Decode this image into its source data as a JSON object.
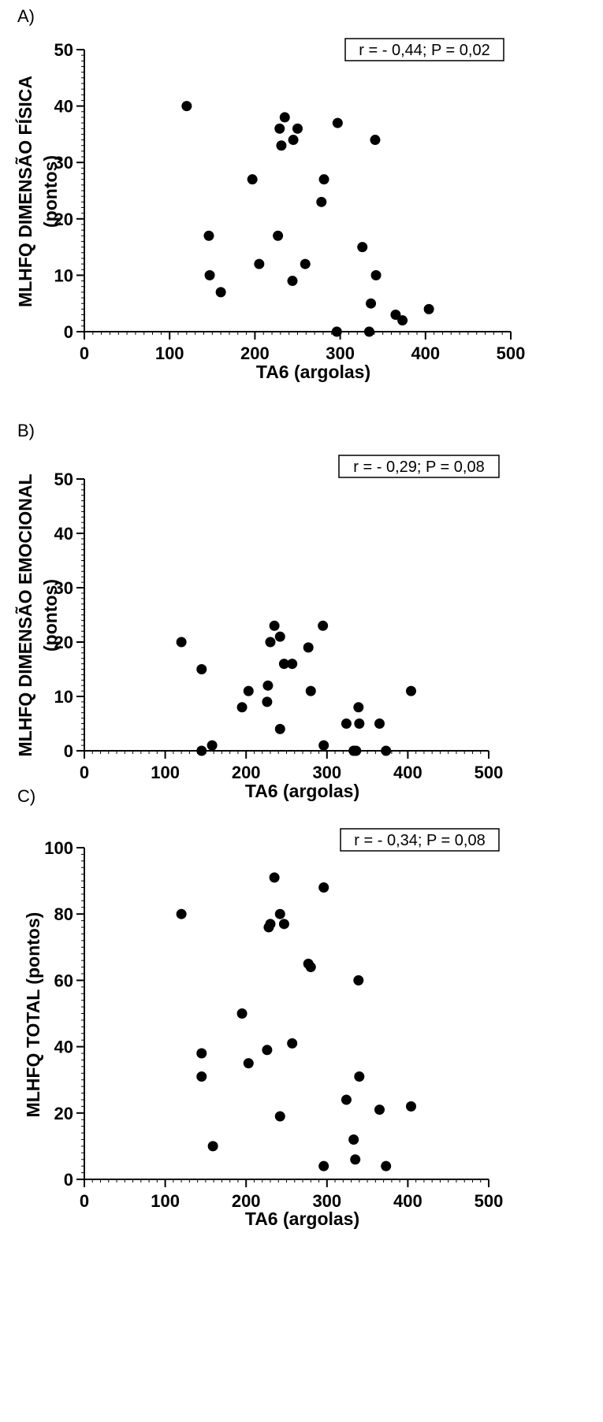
{
  "chart_data": [
    {
      "type": "scatter",
      "panel_label": "A)",
      "xlabel": "TA6 (argolas)",
      "ylabel": "MLHFQ DIMENSÃO FÍSICA",
      "ylabel2": "(pontos)",
      "annotation": "r = - 0,44; P = 0,02",
      "xlim": [
        0,
        500
      ],
      "ylim": [
        0,
        50
      ],
      "xticks": [
        "0",
        "100",
        "200",
        "300",
        "400",
        "500"
      ],
      "yticks": [
        "0",
        "10",
        "20",
        "30",
        "40",
        "50"
      ],
      "x": [
        120,
        146,
        147,
        160,
        197,
        205,
        227,
        229,
        231,
        235,
        244,
        245,
        250,
        259,
        278,
        281,
        296,
        297,
        326,
        334,
        336,
        341,
        342,
        365,
        373,
        404
      ],
      "y": [
        40,
        17,
        10,
        7,
        27,
        12,
        17,
        36,
        33,
        38,
        9,
        34,
        36,
        12,
        23,
        27,
        0,
        37,
        15,
        0,
        5,
        34,
        10,
        3,
        2,
        4
      ]
    },
    {
      "type": "scatter",
      "panel_label": "B)",
      "xlabel": "TA6 (argolas)",
      "ylabel": "MLHFQ DIMENSÃO EMOCIONAL",
      "ylabel2": "(pontos)",
      "annotation": "r = - 0,29; P = 0,08",
      "xlim": [
        0,
        500
      ],
      "ylim": [
        0,
        50
      ],
      "xticks": [
        "0",
        "100",
        "200",
        "300",
        "400",
        "500"
      ],
      "yticks": [
        "0",
        "10",
        "20",
        "30",
        "40",
        "50"
      ],
      "x": [
        120,
        145,
        145,
        158,
        195,
        203,
        226,
        227,
        230,
        235,
        242,
        242,
        247,
        257,
        277,
        280,
        295,
        296,
        324,
        333,
        336,
        339,
        340,
        365,
        373,
        404
      ],
      "y": [
        20,
        15,
        0,
        1,
        8,
        11,
        9,
        12,
        20,
        23,
        21,
        4,
        16,
        16,
        19,
        11,
        23,
        1,
        5,
        0,
        0,
        8,
        5,
        5,
        0,
        11
      ]
    },
    {
      "type": "scatter",
      "panel_label": "C)",
      "xlabel": "TA6 (argolas)",
      "ylabel": "MLHFQ TOTAL (pontos)",
      "annotation": "r = - 0,34; P = 0,08",
      "xlim": [
        0,
        500
      ],
      "ylim": [
        0,
        100
      ],
      "xticks": [
        "0",
        "100",
        "200",
        "300",
        "400",
        "500"
      ],
      "yticks": [
        "0",
        "20",
        "40",
        "60",
        "80",
        "100"
      ],
      "x": [
        120,
        145,
        145,
        159,
        195,
        203,
        226,
        228,
        230,
        235,
        242,
        242,
        247,
        257,
        277,
        280,
        296,
        296,
        324,
        333,
        335,
        339,
        340,
        365,
        373,
        404
      ],
      "y": [
        80,
        38,
        31,
        10,
        50,
        35,
        39,
        76,
        77,
        91,
        80,
        19,
        77,
        41,
        65,
        64,
        88,
        4,
        24,
        12,
        6,
        60,
        31,
        21,
        4,
        22
      ]
    }
  ]
}
